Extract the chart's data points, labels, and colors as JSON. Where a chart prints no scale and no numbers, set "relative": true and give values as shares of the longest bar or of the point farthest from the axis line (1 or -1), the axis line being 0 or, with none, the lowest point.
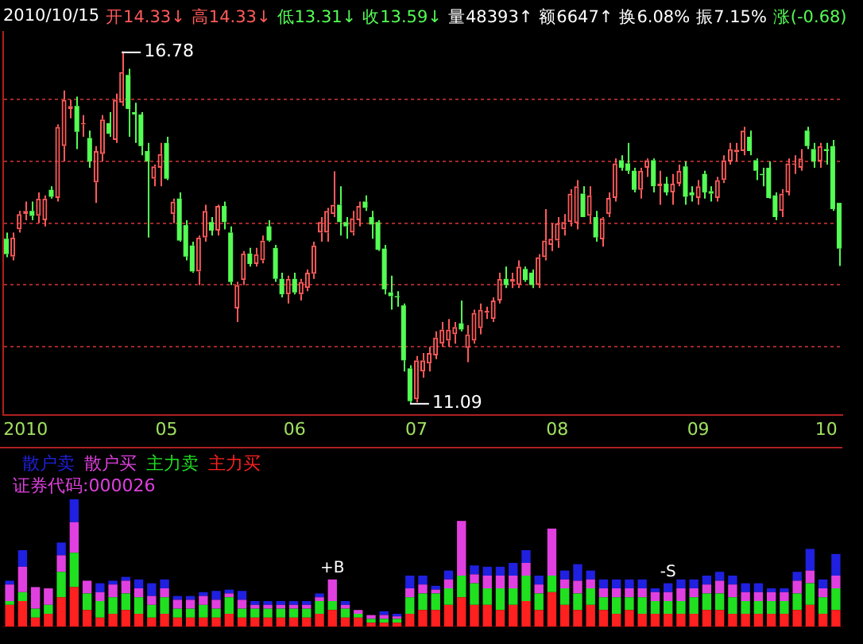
{
  "chart_data": [
    {
      "type": "candlestick",
      "subtitle": "2010/10/15 开14.33↓ 高14.33↓ 低13.31↓ 收13.59↓ 量48393↑ 额6647↑ 换6.08% 振7.15% 涨(-0.68)",
      "categories": [
        null,
        null,
        null,
        "2010",
        null,
        null,
        null,
        null,
        null,
        null,
        null,
        null,
        null,
        null,
        null,
        null,
        null,
        null,
        null,
        null,
        null,
        null,
        null,
        null,
        null,
        "05",
        null,
        null,
        null,
        null,
        null,
        null,
        null,
        null,
        null,
        null,
        null,
        null,
        null,
        null,
        null,
        null,
        null,
        null,
        null,
        "06",
        null,
        null,
        null,
        null,
        null,
        null,
        null,
        null,
        null,
        null,
        null,
        null,
        null,
        null,
        null,
        null,
        null,
        null,
        "07",
        null,
        null,
        null,
        null,
        null,
        null,
        null,
        null,
        null,
        null,
        null,
        null,
        null,
        null,
        null,
        null,
        null,
        null,
        null,
        null,
        null,
        "08",
        null,
        null,
        null,
        null,
        null,
        null,
        null,
        null,
        null,
        null,
        null,
        null,
        null,
        null,
        null,
        null,
        null,
        null,
        null,
        null,
        null,
        "09",
        null,
        null,
        null,
        null,
        null,
        null,
        null,
        null,
        null,
        null,
        null,
        null,
        null,
        null,
        null,
        null,
        null,
        null,
        null,
        "10",
        null,
        null
      ],
      "ohlc": [
        [
          13.75,
          13.85,
          13.45,
          13.5
        ],
        [
          13.46,
          13.85,
          13.4,
          13.77
        ],
        [
          13.9,
          14.2,
          13.85,
          14.15
        ],
        [
          14.15,
          14.35,
          14.05,
          14.2
        ],
        [
          14.2,
          14.35,
          14.05,
          14.12
        ],
        [
          14.12,
          14.5,
          14.0,
          14.4
        ],
        [
          14.05,
          14.45,
          13.95,
          14.4
        ],
        [
          14.54,
          14.6,
          14.4,
          14.43
        ],
        [
          14.41,
          15.6,
          14.35,
          15.56
        ],
        [
          15.25,
          16.15,
          15.0,
          16.0
        ],
        [
          15.85,
          16.0,
          15.7,
          15.9
        ],
        [
          15.9,
          16.05,
          15.2,
          15.48
        ],
        [
          15.6,
          15.75,
          15.4,
          15.62
        ],
        [
          15.38,
          15.5,
          14.9,
          15.0
        ],
        [
          14.66,
          15.25,
          14.33,
          15.17
        ],
        [
          15.12,
          15.75,
          15.0,
          15.68
        ],
        [
          15.62,
          15.8,
          15.4,
          15.45
        ],
        [
          15.35,
          16.1,
          15.3,
          16.0
        ],
        [
          15.95,
          16.78,
          15.9,
          16.45
        ],
        [
          16.4,
          16.5,
          15.4,
          15.85
        ],
        [
          15.8,
          15.95,
          15.3,
          15.76
        ],
        [
          15.76,
          15.8,
          15.1,
          15.25
        ],
        [
          15.17,
          15.3,
          13.77,
          15.0
        ],
        [
          14.72,
          14.95,
          14.6,
          14.92
        ],
        [
          14.9,
          15.3,
          14.6,
          15.12
        ],
        [
          15.3,
          15.4,
          14.7,
          14.72
        ],
        [
          14.15,
          14.4,
          14.0,
          14.35
        ],
        [
          14.4,
          14.5,
          13.7,
          13.72
        ],
        [
          13.97,
          14.05,
          13.4,
          13.46
        ],
        [
          13.64,
          13.7,
          13.2,
          13.22
        ],
        [
          13.22,
          13.8,
          13.0,
          13.77
        ],
        [
          13.77,
          14.3,
          13.7,
          14.2
        ],
        [
          14.02,
          14.1,
          13.8,
          13.88
        ],
        [
          13.88,
          14.3,
          13.8,
          14.28
        ],
        [
          14.28,
          14.35,
          13.9,
          14.02
        ],
        [
          13.85,
          13.95,
          13.0,
          13.05
        ],
        [
          12.62,
          13.05,
          12.4,
          13.0
        ],
        [
          13.08,
          13.55,
          13.0,
          13.51
        ],
        [
          13.51,
          13.6,
          13.3,
          13.34
        ],
        [
          13.34,
          13.6,
          13.3,
          13.5
        ],
        [
          13.4,
          13.8,
          13.35,
          13.72
        ],
        [
          13.95,
          14.05,
          13.7,
          13.72
        ],
        [
          13.6,
          13.65,
          13.05,
          13.1
        ],
        [
          13.1,
          13.2,
          12.8,
          12.85
        ],
        [
          12.85,
          13.15,
          12.7,
          13.1
        ],
        [
          13.1,
          13.2,
          12.85,
          12.88
        ],
        [
          12.85,
          13.1,
          12.75,
          13.05
        ],
        [
          12.95,
          13.25,
          12.9,
          13.2
        ],
        [
          13.18,
          13.7,
          13.1,
          13.64
        ],
        [
          13.85,
          14.1,
          13.7,
          14.02
        ],
        [
          13.85,
          14.25,
          13.7,
          14.2
        ],
        [
          14.15,
          14.84,
          14.1,
          14.3
        ],
        [
          14.3,
          14.6,
          13.8,
          14.02
        ],
        [
          14.02,
          14.1,
          13.75,
          13.95
        ],
        [
          13.85,
          14.2,
          13.8,
          14.08
        ],
        [
          14.05,
          14.35,
          13.95,
          14.28
        ],
        [
          14.35,
          14.45,
          14.2,
          14.25
        ],
        [
          14.1,
          14.2,
          13.75,
          13.98
        ],
        [
          14.02,
          14.05,
          13.55,
          13.57
        ],
        [
          13.59,
          13.65,
          12.85,
          12.93
        ],
        [
          12.88,
          13.15,
          12.6,
          12.82
        ],
        [
          12.82,
          12.9,
          12.65,
          12.8
        ],
        [
          12.67,
          12.7,
          11.6,
          11.78
        ],
        [
          11.65,
          11.7,
          11.09,
          11.12
        ],
        [
          11.15,
          11.85,
          11.1,
          11.78
        ],
        [
          11.6,
          11.9,
          11.5,
          11.78
        ],
        [
          11.73,
          12.0,
          11.6,
          11.9
        ],
        [
          11.86,
          12.25,
          11.8,
          12.15
        ],
        [
          12.05,
          12.4,
          12.0,
          12.28
        ],
        [
          12.1,
          12.45,
          12.0,
          12.28
        ],
        [
          12.2,
          12.4,
          12.05,
          12.32
        ],
        [
          12.38,
          12.75,
          12.25,
          12.28
        ],
        [
          11.98,
          12.35,
          11.75,
          12.2
        ],
        [
          12.1,
          12.6,
          12.05,
          12.55
        ],
        [
          12.3,
          12.7,
          12.2,
          12.6
        ],
        [
          12.55,
          12.65,
          12.45,
          12.58
        ],
        [
          12.45,
          12.8,
          12.4,
          12.75
        ],
        [
          12.75,
          13.2,
          12.7,
          13.1
        ],
        [
          13.1,
          13.3,
          12.95,
          13.0
        ],
        [
          13.05,
          13.2,
          12.95,
          13.1
        ],
        [
          13.0,
          13.4,
          12.95,
          13.3
        ],
        [
          13.26,
          13.3,
          13.05,
          13.08
        ],
        [
          13.2,
          13.25,
          12.95,
          13.0
        ],
        [
          13.0,
          13.5,
          12.95,
          13.45
        ],
        [
          13.45,
          14.23,
          13.4,
          13.72
        ],
        [
          13.65,
          14.0,
          13.55,
          13.75
        ],
        [
          13.72,
          14.1,
          13.6,
          14.0
        ],
        [
          13.9,
          14.15,
          13.8,
          14.02
        ],
        [
          14.02,
          14.55,
          13.95,
          14.48
        ],
        [
          14.0,
          14.7,
          13.9,
          14.6
        ],
        [
          14.48,
          14.6,
          14.1,
          14.1
        ],
        [
          14.12,
          14.6,
          14.0,
          14.45
        ],
        [
          14.1,
          14.2,
          13.7,
          13.77
        ],
        [
          13.74,
          14.1,
          13.62,
          14.08
        ],
        [
          14.15,
          14.5,
          14.1,
          14.41
        ],
        [
          14.41,
          15.05,
          14.35,
          14.97
        ],
        [
          15.02,
          15.1,
          14.85,
          14.9
        ],
        [
          14.97,
          15.3,
          14.8,
          14.85
        ],
        [
          14.85,
          14.9,
          14.5,
          14.54
        ],
        [
          14.54,
          14.9,
          14.4,
          14.85
        ],
        [
          14.9,
          15.05,
          14.75,
          15.02
        ],
        [
          15.02,
          15.05,
          14.5,
          14.6
        ],
        [
          14.6,
          14.85,
          14.3,
          14.64
        ],
        [
          14.64,
          14.75,
          14.45,
          14.5
        ],
        [
          14.5,
          14.8,
          14.3,
          14.64
        ],
        [
          14.64,
          14.95,
          14.6,
          14.85
        ],
        [
          14.92,
          15.0,
          14.3,
          14.43
        ],
        [
          14.5,
          14.6,
          14.35,
          14.45
        ],
        [
          14.41,
          14.7,
          14.3,
          14.6
        ],
        [
          14.8,
          14.85,
          14.4,
          14.5
        ],
        [
          14.52,
          14.6,
          14.35,
          14.48
        ],
        [
          14.41,
          14.75,
          14.35,
          14.7
        ],
        [
          14.7,
          15.1,
          14.65,
          15.02
        ],
        [
          15.0,
          15.3,
          14.95,
          15.2
        ],
        [
          15.15,
          15.3,
          15.0,
          15.19
        ],
        [
          15.17,
          15.56,
          15.1,
          15.5
        ],
        [
          15.4,
          15.5,
          15.1,
          15.17
        ],
        [
          15.02,
          15.05,
          14.7,
          14.85
        ],
        [
          14.8,
          14.9,
          14.6,
          14.78
        ],
        [
          14.9,
          15.0,
          14.4,
          14.41
        ],
        [
          14.45,
          14.5,
          14.05,
          14.1
        ],
        [
          14.2,
          14.55,
          14.1,
          14.48
        ],
        [
          14.5,
          15.05,
          14.45,
          14.97
        ],
        [
          14.95,
          15.1,
          14.8,
          14.97
        ],
        [
          14.9,
          15.2,
          14.85,
          15.05
        ],
        [
          15.5,
          15.56,
          15.2,
          15.25
        ],
        [
          15.2,
          15.3,
          14.9,
          15.0
        ],
        [
          15.0,
          15.3,
          14.9,
          15.25
        ],
        [
          15.2,
          15.3,
          14.95,
          15.17
        ],
        [
          15.25,
          15.35,
          14.2,
          14.23
        ],
        [
          14.33,
          14.33,
          13.31,
          13.59
        ]
      ],
      "ylim": [
        10.9,
        17.1
      ],
      "yticks": [
        {
          "value": 12,
          "label": null
        },
        {
          "value": 13,
          "label": null
        },
        {
          "value": 14,
          "label": null
        },
        {
          "value": 15,
          "label": null
        },
        {
          "value": 16,
          "label": null
        }
      ],
      "grid": "y",
      "tick_labels": "x",
      "annotations": [
        "16.78",
        "11.09"
      ]
    },
    {
      "type": "bar",
      "stacked": true,
      "relative": true,
      "legend": "top left",
      "tick_labels": false,
      "categories": [
        null,
        null,
        null,
        null,
        null,
        null,
        null,
        null,
        null,
        null,
        null,
        null,
        null,
        null,
        null,
        null,
        null,
        null,
        null,
        null,
        null,
        null,
        null,
        null,
        null,
        null,
        null,
        null,
        null,
        null,
        null,
        null,
        null,
        null,
        null,
        null,
        null,
        null,
        null,
        null,
        null,
        null,
        null,
        null,
        null,
        null,
        null,
        null,
        null,
        null,
        null,
        null,
        null,
        null,
        null,
        null,
        null,
        null,
        null,
        null,
        null,
        null,
        null,
        null,
        null
      ],
      "series": [
        {
          "name": "主力买",
          "color": "#ff2020",
          "values": [
            0.17,
            0.2,
            0.07,
            0.1,
            0.23,
            0.31,
            0.13,
            0.07,
            0.1,
            0.13,
            0.1,
            0.07,
            0.1,
            0.07,
            0.07,
            0.07,
            0.07,
            0.1,
            0.07,
            0.07,
            0.07,
            0.07,
            0.07,
            0.07,
            0.1,
            0.13,
            0.07,
            0.07,
            0.03,
            0.03,
            0.03,
            0.1,
            0.13,
            0.13,
            0.17,
            0.23,
            0.17,
            0.17,
            0.13,
            0.17,
            0.2,
            0.13,
            0.27,
            0.17,
            0.13,
            0.17,
            0.13,
            0.1,
            0.13,
            0.1,
            0.1,
            0.1,
            0.1,
            0.1,
            0.13,
            0.13,
            0.1,
            0.1,
            0.1,
            0.1,
            0.1,
            0.13,
            0.17,
            0.1,
            0.13
          ]
        },
        {
          "name": "主力卖",
          "color": "#20e020",
          "values": [
            0.03,
            0.07,
            0.07,
            0.07,
            0.2,
            0.27,
            0.13,
            0.13,
            0.13,
            0.13,
            0.13,
            0.1,
            0.13,
            0.07,
            0.07,
            0.1,
            0.07,
            0.13,
            0.07,
            0.07,
            0.07,
            0.07,
            0.07,
            0.07,
            0.1,
            0.07,
            0.07,
            0.03,
            0.03,
            0.03,
            0.03,
            0.13,
            0.13,
            0.13,
            0.13,
            0.17,
            0.17,
            0.13,
            0.17,
            0.13,
            0.2,
            0.13,
            0.13,
            0.13,
            0.13,
            0.13,
            0.1,
            0.13,
            0.1,
            0.13,
            0.1,
            0.1,
            0.1,
            0.13,
            0.13,
            0.13,
            0.13,
            0.1,
            0.1,
            0.1,
            0.1,
            0.13,
            0.17,
            0.13,
            0.17
          ]
        },
        {
          "name": "散户买",
          "color": "#e040e0",
          "values": [
            0.13,
            0.2,
            0.17,
            0.13,
            0.13,
            0.24,
            0.1,
            0.07,
            0.1,
            0.1,
            0.07,
            0.07,
            0.07,
            0.07,
            0.07,
            0.07,
            0.07,
            0.03,
            0.07,
            0.03,
            0.03,
            0.03,
            0.03,
            0.03,
            0.03,
            0.17,
            0.03,
            0.03,
            0.03,
            0.03,
            0.02,
            0.07,
            0.07,
            0.03,
            0.07,
            0.43,
            0.07,
            0.1,
            0.1,
            0.1,
            0.1,
            0.07,
            0.37,
            0.07,
            0.1,
            0.07,
            0.07,
            0.07,
            0.07,
            0.07,
            0.07,
            0.07,
            0.1,
            0.07,
            0.07,
            0.1,
            0.1,
            0.07,
            0.07,
            0.07,
            0.07,
            0.1,
            0.1,
            0.07,
            0.1
          ]
        },
        {
          "name": "散户卖",
          "color": "#2020e0",
          "values": [
            0.03,
            0.13,
            0,
            0,
            0.1,
            0.18,
            0,
            0.07,
            0.03,
            0.03,
            0.07,
            0.1,
            0.07,
            0.03,
            0.03,
            0.03,
            0.07,
            0.03,
            0.07,
            0.03,
            0.03,
            0.03,
            0.03,
            0.03,
            0.03,
            0,
            0.03,
            0,
            0,
            0.03,
            0.02,
            0.1,
            0.07,
            0.03,
            0.07,
            0,
            0.07,
            0.07,
            0.07,
            0.1,
            0.1,
            0.07,
            0,
            0.07,
            0.13,
            0.07,
            0.07,
            0.07,
            0.07,
            0.07,
            0.03,
            0.07,
            0.07,
            0.07,
            0.07,
            0.07,
            0.07,
            0.07,
            0.07,
            0.03,
            0.03,
            0.07,
            0.17,
            0.07,
            0.17
          ]
        }
      ],
      "annotations": [
        "证券代码:000026",
        "+B",
        "-S"
      ]
    }
  ]
}
